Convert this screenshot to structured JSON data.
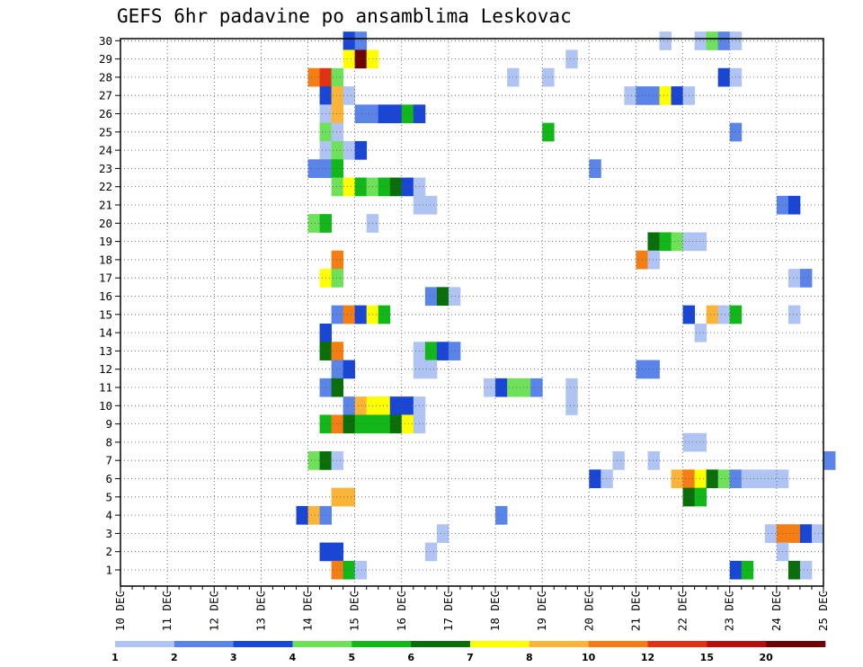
{
  "title": "GEFS 6hr padavine po ansamblima Leskovac",
  "chart_data": {
    "type": "heatmap",
    "title": "GEFS 6hr padavine po ansamblima Leskovac",
    "x_axis": {
      "type": "date",
      "start": "10 DEC",
      "end": "25 DEC",
      "step": "6 hours",
      "tick_labels": [
        "10 DEC",
        "11 DEC",
        "12 DEC",
        "13 DEC",
        "14 DEC",
        "15 DEC",
        "16 DEC",
        "17 DEC",
        "18 DEC",
        "19 DEC",
        "20 DEC",
        "21 DEC",
        "22 DEC",
        "23 DEC",
        "24 DEC",
        "25 DEC"
      ]
    },
    "y_axis": {
      "tick_labels": [
        "1",
        "2",
        "3",
        "4",
        "5",
        "6",
        "7",
        "8",
        "9",
        "10",
        "11",
        "12",
        "13",
        "14",
        "15",
        "16",
        "17",
        "18",
        "19",
        "20",
        "21",
        "22",
        "23",
        "24",
        "25",
        "26",
        "27",
        "28",
        "29",
        "30"
      ],
      "range": [
        1,
        30
      ]
    },
    "grid": true,
    "legend": {
      "placement": "bottom",
      "levels": [
        "1",
        "2",
        "3",
        "4",
        "5",
        "6",
        "7",
        "8",
        "10",
        "12",
        "15",
        "20"
      ],
      "colors": [
        "#b0c4f4",
        "#5a84e8",
        "#1a46d6",
        "#6ee05a",
        "#12b81a",
        "#0a6e0a",
        "#ffff00",
        "#fcb438",
        "#f47e14",
        "#e23214",
        "#b40f0f",
        "#6e0505"
      ]
    },
    "series_note": "Each cell: ensemble member (row), 6-hour step index from 10 DEC 00Z (column), color class index into legend colors",
    "cells": [
      [
        30,
        19,
        2
      ],
      [
        30,
        20,
        1
      ],
      [
        30,
        46,
        0
      ],
      [
        30,
        49,
        0
      ],
      [
        30,
        50,
        3
      ],
      [
        30,
        51,
        1
      ],
      [
        30,
        52,
        0
      ],
      [
        29,
        19,
        6
      ],
      [
        29,
        20,
        11
      ],
      [
        29,
        21,
        6
      ],
      [
        29,
        38,
        0
      ],
      [
        28,
        16,
        8
      ],
      [
        28,
        17,
        9
      ],
      [
        28,
        18,
        3
      ],
      [
        28,
        33,
        0
      ],
      [
        28,
        36,
        0
      ],
      [
        28,
        51,
        2
      ],
      [
        28,
        52,
        0
      ],
      [
        27,
        17,
        2
      ],
      [
        27,
        18,
        7
      ],
      [
        27,
        19,
        0
      ],
      [
        27,
        43,
        0
      ],
      [
        27,
        44,
        1
      ],
      [
        27,
        45,
        1
      ],
      [
        27,
        46,
        6
      ],
      [
        27,
        47,
        2
      ],
      [
        27,
        48,
        0
      ],
      [
        26,
        17,
        0
      ],
      [
        26,
        18,
        7
      ],
      [
        26,
        20,
        1
      ],
      [
        26,
        21,
        1
      ],
      [
        26,
        22,
        2
      ],
      [
        26,
        23,
        2
      ],
      [
        26,
        24,
        4
      ],
      [
        26,
        25,
        2
      ],
      [
        25,
        17,
        3
      ],
      [
        25,
        18,
        0
      ],
      [
        25,
        36,
        4
      ],
      [
        25,
        52,
        1
      ],
      [
        24,
        17,
        0
      ],
      [
        24,
        18,
        3
      ],
      [
        24,
        19,
        0
      ],
      [
        24,
        20,
        2
      ],
      [
        23,
        16,
        1
      ],
      [
        23,
        17,
        1
      ],
      [
        23,
        18,
        4
      ],
      [
        23,
        40,
        1
      ],
      [
        22,
        18,
        3
      ],
      [
        22,
        19,
        6
      ],
      [
        22,
        20,
        4
      ],
      [
        22,
        21,
        3
      ],
      [
        22,
        22,
        4
      ],
      [
        22,
        23,
        5
      ],
      [
        22,
        24,
        2
      ],
      [
        22,
        25,
        0
      ],
      [
        21,
        25,
        0
      ],
      [
        21,
        26,
        0
      ],
      [
        21,
        56,
        1
      ],
      [
        21,
        57,
        2
      ],
      [
        20,
        16,
        3
      ],
      [
        20,
        17,
        4
      ],
      [
        20,
        21,
        0
      ],
      [
        19,
        45,
        5
      ],
      [
        19,
        46,
        4
      ],
      [
        19,
        47,
        3
      ],
      [
        19,
        48,
        0
      ],
      [
        19,
        49,
        0
      ],
      [
        18,
        18,
        8
      ],
      [
        18,
        44,
        8
      ],
      [
        18,
        45,
        0
      ],
      [
        17,
        17,
        6
      ],
      [
        17,
        18,
        3
      ],
      [
        17,
        57,
        0
      ],
      [
        17,
        58,
        1
      ],
      [
        16,
        26,
        1
      ],
      [
        16,
        27,
        5
      ],
      [
        16,
        28,
        0
      ],
      [
        15,
        18,
        1
      ],
      [
        15,
        19,
        8
      ],
      [
        15,
        20,
        2
      ],
      [
        15,
        21,
        6
      ],
      [
        15,
        22,
        4
      ],
      [
        15,
        48,
        2
      ],
      [
        15,
        50,
        7
      ],
      [
        15,
        51,
        0
      ],
      [
        15,
        52,
        4
      ],
      [
        15,
        57,
        0
      ],
      [
        14,
        17,
        2
      ],
      [
        14,
        49,
        0
      ],
      [
        13,
        17,
        5
      ],
      [
        13,
        18,
        8
      ],
      [
        13,
        25,
        0
      ],
      [
        13,
        26,
        4
      ],
      [
        13,
        27,
        2
      ],
      [
        13,
        28,
        1
      ],
      [
        12,
        18,
        1
      ],
      [
        12,
        19,
        2
      ],
      [
        12,
        25,
        0
      ],
      [
        12,
        26,
        0
      ],
      [
        12,
        44,
        1
      ],
      [
        12,
        45,
        1
      ],
      [
        11,
        17,
        1
      ],
      [
        11,
        18,
        5
      ],
      [
        11,
        31,
        0
      ],
      [
        11,
        32,
        2
      ],
      [
        11,
        33,
        3
      ],
      [
        11,
        34,
        3
      ],
      [
        11,
        35,
        1
      ],
      [
        11,
        38,
        0
      ],
      [
        10,
        19,
        1
      ],
      [
        10,
        20,
        7
      ],
      [
        10,
        21,
        6
      ],
      [
        10,
        22,
        6
      ],
      [
        10,
        23,
        2
      ],
      [
        10,
        24,
        2
      ],
      [
        10,
        25,
        0
      ],
      [
        10,
        38,
        0
      ],
      [
        9,
        17,
        4
      ],
      [
        9,
        18,
        8
      ],
      [
        9,
        19,
        5
      ],
      [
        9,
        20,
        4
      ],
      [
        9,
        21,
        4
      ],
      [
        9,
        22,
        4
      ],
      [
        9,
        23,
        5
      ],
      [
        9,
        24,
        6
      ],
      [
        9,
        25,
        0
      ],
      [
        8,
        48,
        0
      ],
      [
        8,
        49,
        0
      ],
      [
        7,
        16,
        3
      ],
      [
        7,
        17,
        5
      ],
      [
        7,
        18,
        0
      ],
      [
        7,
        42,
        0
      ],
      [
        7,
        45,
        0
      ],
      [
        7,
        60,
        1
      ],
      [
        6,
        40,
        2
      ],
      [
        6,
        41,
        0
      ],
      [
        6,
        47,
        7
      ],
      [
        6,
        48,
        8
      ],
      [
        6,
        49,
        6
      ],
      [
        6,
        50,
        5
      ],
      [
        6,
        51,
        3
      ],
      [
        6,
        52,
        1
      ],
      [
        6,
        53,
        0
      ],
      [
        6,
        54,
        0
      ],
      [
        6,
        55,
        0
      ],
      [
        6,
        56,
        0
      ],
      [
        5,
        18,
        7
      ],
      [
        5,
        19,
        7
      ],
      [
        5,
        48,
        5
      ],
      [
        5,
        49,
        4
      ],
      [
        4,
        15,
        2
      ],
      [
        4,
        16,
        7
      ],
      [
        4,
        17,
        1
      ],
      [
        4,
        32,
        1
      ],
      [
        3,
        27,
        0
      ],
      [
        3,
        55,
        0
      ],
      [
        3,
        56,
        8
      ],
      [
        3,
        57,
        8
      ],
      [
        3,
        58,
        2
      ],
      [
        3,
        59,
        0
      ],
      [
        2,
        17,
        2
      ],
      [
        2,
        18,
        2
      ],
      [
        2,
        26,
        0
      ],
      [
        2,
        56,
        0
      ],
      [
        1,
        18,
        8
      ],
      [
        1,
        19,
        4
      ],
      [
        1,
        20,
        0
      ],
      [
        1,
        52,
        2
      ],
      [
        1,
        53,
        4
      ],
      [
        1,
        57,
        5
      ],
      [
        1,
        58,
        0
      ]
    ]
  }
}
